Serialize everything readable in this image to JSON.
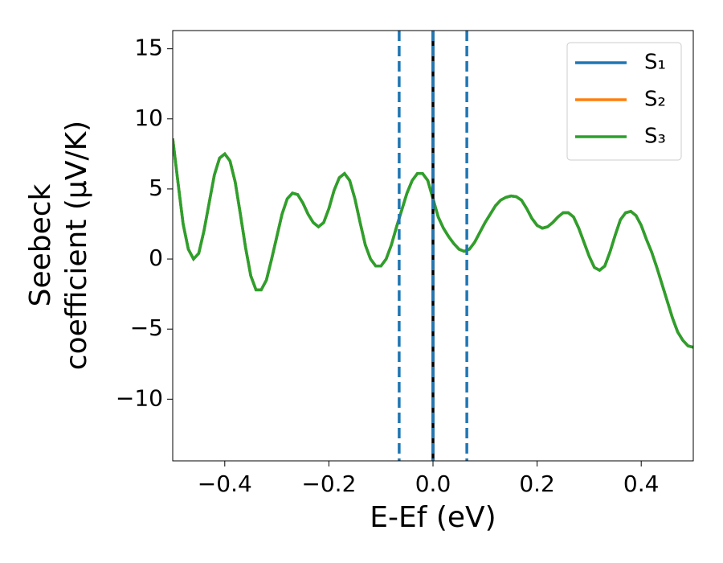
{
  "chart_data": {
    "type": "line",
    "x_label": "E-Ef (eV)",
    "y_label": [
      "Seebeck",
      "coefficient  (μV/K)"
    ],
    "xlim": [
      -0.5,
      0.5
    ],
    "xticks": [
      {
        "value": -0.4,
        "label": "−0.4"
      },
      {
        "value": -0.2,
        "label": "−0.2"
      },
      {
        "value": 0,
        "label": "0.0"
      },
      {
        "value": 0.2,
        "label": "0.2"
      },
      {
        "value": 0.4,
        "label": "0.4"
      }
    ],
    "ylim": [
      -14.4,
      16.3
    ],
    "yticks": [
      {
        "value": -10,
        "label": "−10"
      },
      {
        "value": -5,
        "label": "−5"
      },
      0,
      5,
      10,
      15
    ],
    "legend": "upper right",
    "grid": false,
    "x": [
      -0.5,
      -0.49,
      -0.48,
      -0.47,
      -0.46,
      -0.45,
      -0.44,
      -0.43,
      -0.42,
      -0.41,
      -0.4,
      -0.39,
      -0.38,
      -0.37,
      -0.36,
      -0.35,
      -0.34,
      -0.33,
      -0.32,
      -0.31,
      -0.3,
      -0.29,
      -0.28,
      -0.27,
      -0.26,
      -0.25,
      -0.24,
      -0.23,
      -0.22,
      -0.21,
      -0.2,
      -0.19,
      -0.18,
      -0.17,
      -0.16,
      -0.15,
      -0.14,
      -0.13,
      -0.12,
      -0.11,
      -0.1,
      -0.09,
      -0.08,
      -0.07,
      -0.06,
      -0.05,
      -0.04,
      -0.03,
      -0.02,
      -0.01,
      0,
      0.01,
      0.02,
      0.03,
      0.04,
      0.05,
      0.06,
      0.07,
      0.08,
      0.09,
      0.1,
      0.11,
      0.12,
      0.13,
      0.14,
      0.15,
      0.16,
      0.17,
      0.18,
      0.19,
      0.2,
      0.21,
      0.22,
      0.23,
      0.24,
      0.25,
      0.26,
      0.27,
      0.28,
      0.29,
      0.3,
      0.31,
      0.32,
      0.33,
      0.34,
      0.35,
      0.36,
      0.37,
      0.38,
      0.39,
      0.4,
      0.41,
      0.42,
      0.43,
      0.44,
      0.45,
      0.46,
      0.47,
      0.48,
      0.49,
      0.5
    ],
    "series": [
      {
        "name": "S₁",
        "color": "#1f77b4",
        "values": [
          8.6,
          5.5,
          2.5,
          0.7,
          0,
          0.4,
          2,
          4,
          6,
          7.2,
          7.5,
          7,
          5.5,
          3.2,
          0.8,
          -1.2,
          -2.2,
          -2.2,
          -1.5,
          0,
          1.6,
          3.2,
          4.3,
          4.7,
          4.6,
          4,
          3.2,
          2.6,
          2.3,
          2.6,
          3.6,
          4.9,
          5.8,
          6.1,
          5.6,
          4.3,
          2.6,
          1,
          0,
          -0.5,
          -0.5,
          0,
          1,
          2.3,
          3.5,
          4.7,
          5.6,
          6.1,
          6.1,
          5.6,
          4.3,
          3,
          2.2,
          1.6,
          1.1,
          0.7,
          0.55,
          0.7,
          1.2,
          1.9,
          2.6,
          3.2,
          3.8,
          4.2,
          4.4,
          4.5,
          4.45,
          4.2,
          3.6,
          2.9,
          2.4,
          2.2,
          2.3,
          2.6,
          3,
          3.3,
          3.3,
          3,
          2.2,
          1.2,
          0.2,
          -0.6,
          -0.8,
          -0.5,
          0.5,
          1.7,
          2.8,
          3.3,
          3.4,
          3.1,
          2.4,
          1.4,
          0.5,
          -0.6,
          -1.8,
          -3,
          -4.2,
          -5.2,
          -5.8,
          -6.2,
          -6.3
        ]
      },
      {
        "name": "S₂",
        "color": "#ff7f0e",
        "values": [
          8.6,
          5.5,
          2.5,
          0.7,
          0,
          0.4,
          2,
          4,
          6,
          7.2,
          7.5,
          7,
          5.5,
          3.2,
          0.8,
          -1.2,
          -2.2,
          -2.2,
          -1.5,
          0,
          1.6,
          3.2,
          4.3,
          4.7,
          4.6,
          4,
          3.2,
          2.6,
          2.3,
          2.6,
          3.6,
          4.9,
          5.8,
          6.1,
          5.6,
          4.3,
          2.6,
          1,
          0,
          -0.5,
          -0.5,
          0,
          1,
          2.3,
          3.5,
          4.7,
          5.6,
          6.1,
          6.1,
          5.6,
          4.3,
          3,
          2.2,
          1.6,
          1.1,
          0.7,
          0.55,
          0.7,
          1.2,
          1.9,
          2.6,
          3.2,
          3.8,
          4.2,
          4.4,
          4.5,
          4.45,
          4.2,
          3.6,
          2.9,
          2.4,
          2.2,
          2.3,
          2.6,
          3,
          3.3,
          3.3,
          3,
          2.2,
          1.2,
          0.2,
          -0.6,
          -0.8,
          -0.5,
          0.5,
          1.7,
          2.8,
          3.3,
          3.4,
          3.1,
          2.4,
          1.4,
          0.5,
          -0.6,
          -1.8,
          -3,
          -4.2,
          -5.2,
          -5.8,
          -6.2,
          -6.3
        ]
      },
      {
        "name": "S₃",
        "color": "#2ca02c",
        "values": [
          8.6,
          5.5,
          2.5,
          0.7,
          0,
          0.4,
          2,
          4,
          6,
          7.2,
          7.5,
          7,
          5.5,
          3.2,
          0.8,
          -1.2,
          -2.2,
          -2.2,
          -1.5,
          0,
          1.6,
          3.2,
          4.3,
          4.7,
          4.6,
          4,
          3.2,
          2.6,
          2.3,
          2.6,
          3.6,
          4.9,
          5.8,
          6.1,
          5.6,
          4.3,
          2.6,
          1,
          0,
          -0.5,
          -0.5,
          0,
          1,
          2.3,
          3.5,
          4.7,
          5.6,
          6.1,
          6.1,
          5.6,
          4.3,
          3,
          2.2,
          1.6,
          1.1,
          0.7,
          0.55,
          0.7,
          1.2,
          1.9,
          2.6,
          3.2,
          3.8,
          4.2,
          4.4,
          4.5,
          4.45,
          4.2,
          3.6,
          2.9,
          2.4,
          2.2,
          2.3,
          2.6,
          3,
          3.3,
          3.3,
          3,
          2.2,
          1.2,
          0.2,
          -0.6,
          -0.8,
          -0.5,
          0.5,
          1.7,
          2.8,
          3.3,
          3.4,
          3.1,
          2.4,
          1.4,
          0.5,
          -0.6,
          -1.8,
          -3,
          -4.2,
          -5.2,
          -5.8,
          -6.2,
          -6.3
        ]
      }
    ],
    "vlines": [
      {
        "x": 0,
        "color": "#000000",
        "style": "solid"
      },
      {
        "x": -0.065,
        "color": "#1f77b4",
        "style": "dashed"
      },
      {
        "x": 0,
        "color": "#1f77b4",
        "style": "dashed"
      },
      {
        "x": 0.065,
        "color": "#1f77b4",
        "style": "dashed"
      }
    ]
  }
}
